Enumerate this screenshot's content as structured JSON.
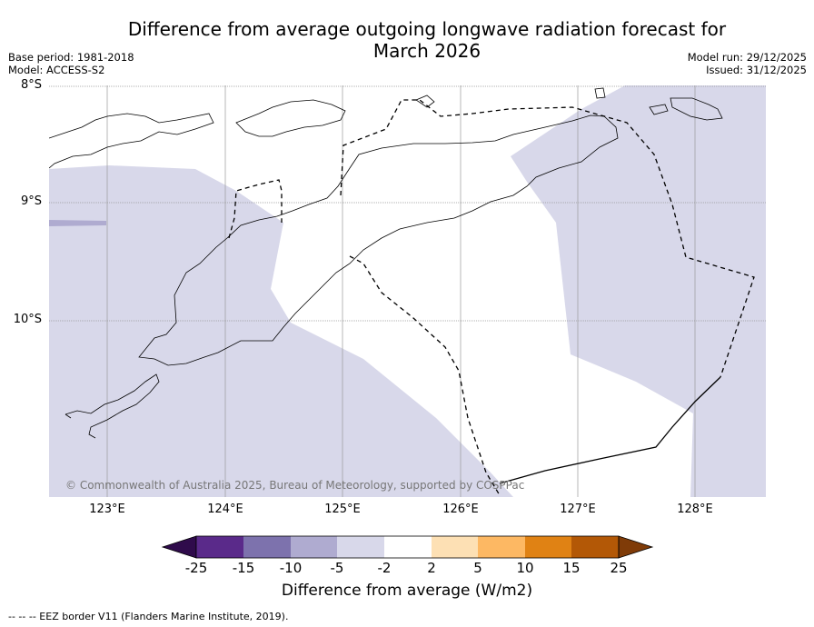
{
  "header": {
    "title_line1": "Difference from average outgoing longwave radiation forecast for",
    "title_line2": "March 2026",
    "base_period": "Base period: 1981-2018",
    "model": "Model: ACCESS-S2",
    "model_run": "Model run: 29/12/2025",
    "issued": "Issued: 31/12/2025"
  },
  "map": {
    "lat_labels": [
      "8°S",
      "9°S",
      "10°S"
    ],
    "lon_labels": [
      "123°E",
      "124°E",
      "125°E",
      "126°E",
      "127°E",
      "128°E"
    ],
    "copyright": "© Commonwealth of Australia 2025, Bureau of Meteorology, supported by COSPPac",
    "colors": {
      "anomaly_light": "#d8d8ea",
      "anomaly_strip": "#afabd0",
      "grid": "#999999",
      "border": "#000000"
    }
  },
  "colorbar": {
    "title": "Difference from average (W/m2)",
    "tick_labels": [
      "-25",
      "-15",
      "-10",
      "-5",
      "-2",
      "2",
      "5",
      "10",
      "15",
      "25"
    ],
    "colors": [
      "#2f0b4b",
      "#5a2a8a",
      "#7d72ad",
      "#afabd0",
      "#d8d8ea",
      "#ffffff",
      "#fde0b4",
      "#fdb863",
      "#e08214",
      "#b35806",
      "#7f3b08"
    ]
  },
  "footer": {
    "legend": "--  --  -- EEZ border V11 (Flanders Marine Institute, 2019)."
  }
}
